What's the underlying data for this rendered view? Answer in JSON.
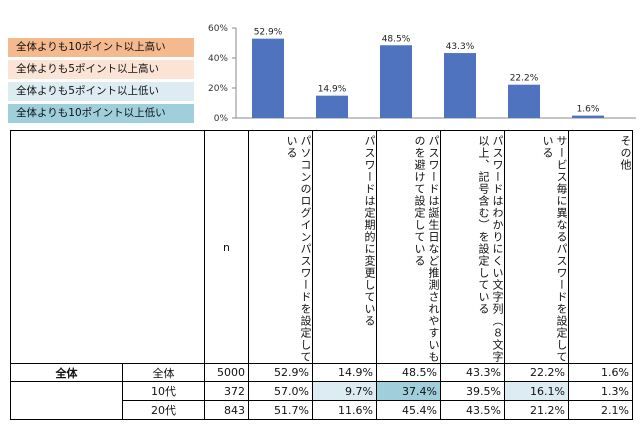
{
  "legend": [
    {
      "label": "全体よりも10ポイント以上高い",
      "color": "#f5b98e"
    },
    {
      "label": "全体よりも5ポイント以上高い",
      "color": "#fbe3d6"
    },
    {
      "label": "全体よりも5ポイント以上低い",
      "color": "#dcecf2"
    },
    {
      "label": "全体よりも10ポイント以上低い",
      "color": "#9fcfda"
    }
  ],
  "chart_data": {
    "type": "bar",
    "categories": [
      "パソコンのログインパスワードを設定している",
      "パスワードは定期的に変更している",
      "パスワードは誕生日など推測されやすいものを避けて設定している",
      "パスワードはわかりにくい文字列（８文字以上、記号含む）を設定している",
      "サービス毎に異なるパスワードを設定している",
      "その他"
    ],
    "values": [
      52.9,
      14.9,
      48.5,
      43.3,
      22.2,
      1.6
    ],
    "value_labels": [
      "52.9%",
      "14.9%",
      "48.5%",
      "43.3%",
      "22.2%",
      "1.6%"
    ],
    "ylim": [
      0,
      60
    ],
    "yticks": [
      "0%",
      "20%",
      "40%",
      "60%"
    ],
    "bar_color": "#4f73be"
  },
  "table": {
    "n_header": "n",
    "headers": [
      "パソコンのログインパスワードを設定している",
      "パスワードは定期的に変更している",
      "パスワードは誕生日など推測されやすいものを避けて設定している",
      "パスワードはわかりにくい文字列（８文字以上、記号含む）を設定している",
      "サービス毎に異なるパスワードを設定している",
      "その他"
    ],
    "rows": [
      {
        "group": "全体",
        "label": "全体",
        "n": "5000",
        "cells": [
          "52.9%",
          "14.9%",
          "48.5%",
          "43.3%",
          "22.2%",
          "1.6%"
        ],
        "colors": [
          "",
          "",
          "",
          "",
          "",
          ""
        ]
      },
      {
        "group": "",
        "label": "10代",
        "n": "372",
        "cells": [
          "57.0%",
          "9.7%",
          "37.4%",
          "39.5%",
          "16.1%",
          "1.3%"
        ],
        "colors": [
          "",
          "#dcecf2",
          "#9fcfda",
          "",
          "#dcecf2",
          ""
        ]
      },
      {
        "group": "",
        "label": "20代",
        "n": "843",
        "cells": [
          "51.7%",
          "11.6%",
          "45.4%",
          "43.5%",
          "21.2%",
          "2.1%"
        ],
        "colors": [
          "",
          "",
          "",
          "",
          "",
          ""
        ]
      }
    ]
  }
}
